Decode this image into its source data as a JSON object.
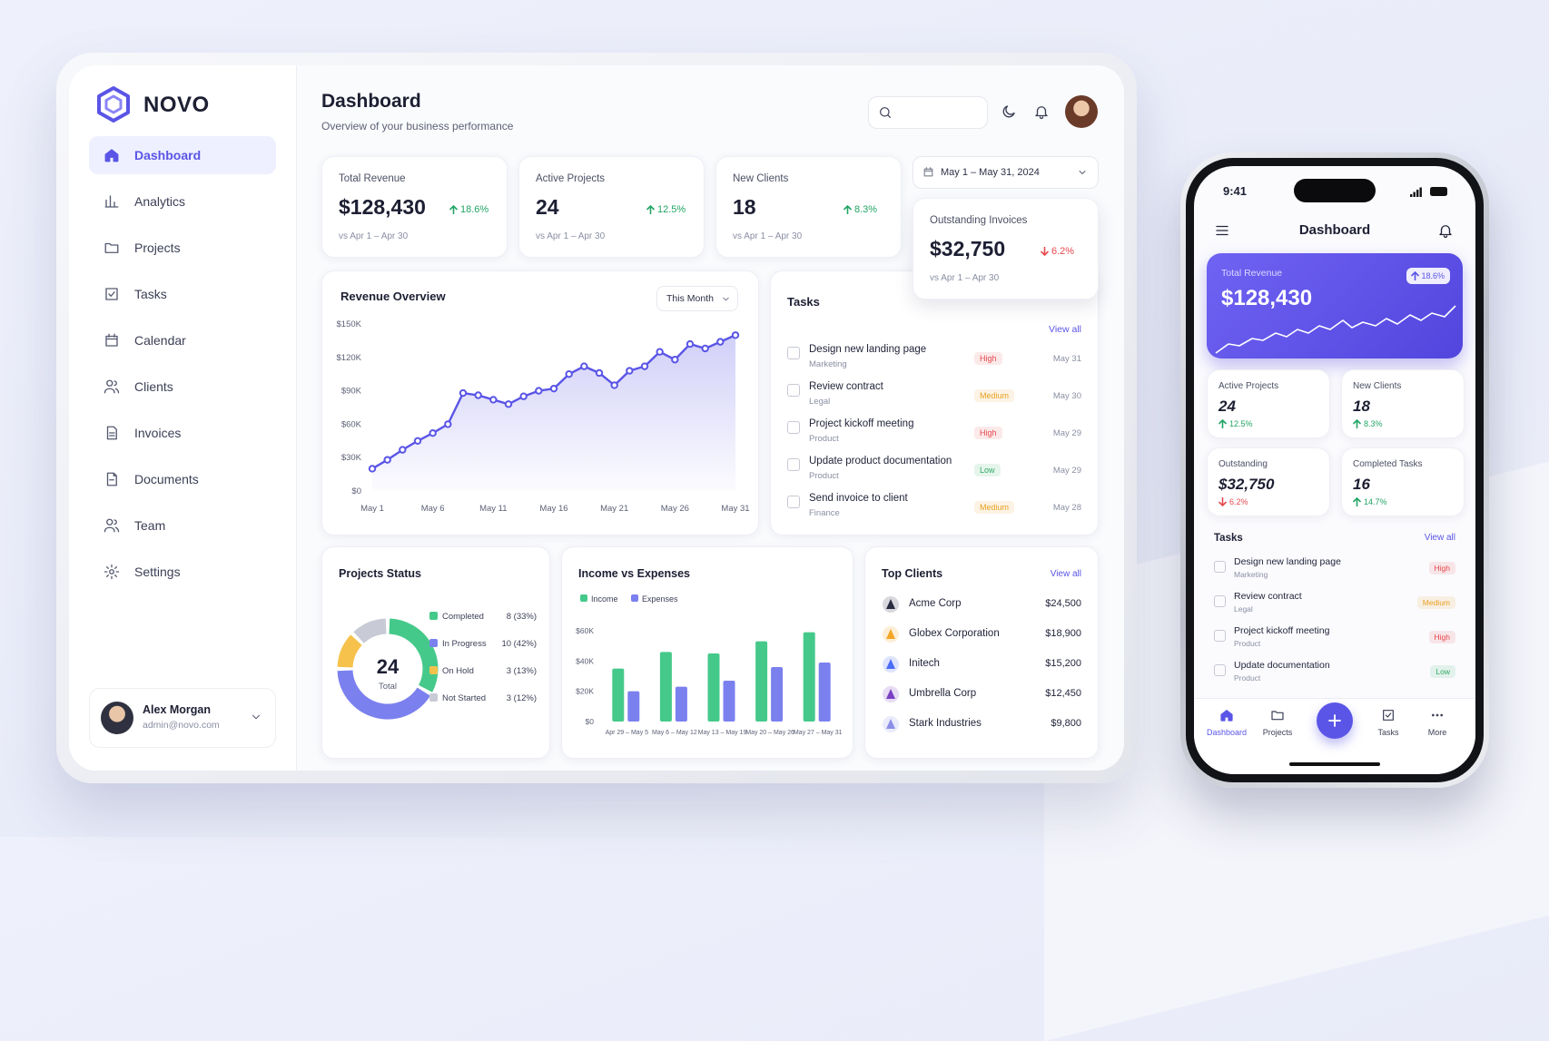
{
  "brand": "NOVO",
  "nav": [
    "Dashboard",
    "Analytics",
    "Projects",
    "Tasks",
    "Calendar",
    "Clients",
    "Invoices",
    "Documents",
    "Team",
    "Settings"
  ],
  "user": {
    "name": "Alex Morgan",
    "email": "admin@novo.com"
  },
  "header": {
    "title": "Dashboard",
    "subtitle": "Overview of your business performance",
    "date_range": "May 1 – May 31, 2024"
  },
  "stats": [
    {
      "label": "Total Revenue",
      "value": "$128,430",
      "change": "18.6%",
      "trend": "up",
      "compare": "vs Apr 1 – Apr 30"
    },
    {
      "label": "Active Projects",
      "value": "24",
      "change": "12.5%",
      "trend": "up",
      "compare": "vs Apr 1 – Apr 30"
    },
    {
      "label": "New Clients",
      "value": "18",
      "change": "8.3%",
      "trend": "up",
      "compare": "vs Apr 1 – Apr 30"
    },
    {
      "label": "Outstanding Invoices",
      "value": "$32,750",
      "change": "6.2%",
      "trend": "down",
      "compare": "vs Apr 1 – Apr 30"
    }
  ],
  "chart_data": [
    {
      "type": "line",
      "title": "Revenue Overview",
      "period": "This Month",
      "color": "#5a55e6",
      "grid": false,
      "categories": [
        "May 1",
        null,
        null,
        null,
        "May 6",
        null,
        null,
        null,
        "May 11",
        null,
        null,
        null,
        "May 16",
        null,
        null,
        null,
        "May 21",
        null,
        null,
        null,
        "May 26",
        null,
        null,
        null,
        "May 31"
      ],
      "values": [
        20000,
        28000,
        37000,
        45000,
        52000,
        60000,
        88000,
        86000,
        82000,
        78000,
        85000,
        90000,
        92000,
        105000,
        112000,
        106000,
        95000,
        108000,
        112000,
        125000,
        118000,
        132000,
        128000,
        134000,
        140000
      ],
      "ylim": [
        0,
        150000
      ],
      "yticks": [
        {
          "value": 0,
          "label": "$0"
        },
        {
          "value": 30000,
          "label": "$30K"
        },
        {
          "value": 60000,
          "label": "$60K"
        },
        {
          "value": 90000,
          "label": "$90K"
        },
        {
          "value": 120000,
          "label": "$120K"
        },
        {
          "value": 150000,
          "label": "$150K"
        }
      ]
    },
    {
      "type": "donut",
      "title": "Projects Status",
      "categories": [
        "Completed",
        "In Progress",
        "On Hold",
        "Not Started"
      ],
      "values": [
        8,
        10,
        3,
        3
      ],
      "value_labels": [
        "8 (33%)",
        "10 (42%)",
        "3 (13%)",
        "3 (12%)"
      ],
      "colors": [
        "#45c98a",
        "#7b80ef",
        "#f6c24c",
        "#c8cbd5"
      ],
      "total": 24,
      "total_label": "Total"
    },
    {
      "type": "bar",
      "title": "Income vs Expenses",
      "categories": [
        "Apr 29 – May 5",
        "May 6 – May 12",
        "May 13 – May 19",
        "May 20 – May 26",
        "May 27 – May 31"
      ],
      "series": [
        {
          "name": "Income",
          "color": "#45c98a",
          "values": [
            35000,
            46000,
            45000,
            53000,
            59000
          ]
        },
        {
          "name": "Expenses",
          "color": "#7b80ef",
          "values": [
            20000,
            23000,
            27000,
            36000,
            39000
          ]
        }
      ],
      "ylim": [
        0,
        60000
      ],
      "yticks": [
        {
          "value": 0,
          "label": "$0"
        },
        {
          "value": 20000,
          "label": "$20K"
        },
        {
          "value": 40000,
          "label": "$40K"
        },
        {
          "value": 60000,
          "label": "$60K"
        }
      ]
    }
  ],
  "tasks": {
    "title": "Tasks",
    "link": "View all",
    "items": [
      {
        "name": "Design new landing page",
        "category": "Marketing",
        "priority": "High",
        "color": "#e5484d",
        "due": "May 31"
      },
      {
        "name": "Review contract",
        "category": "Legal",
        "priority": "Medium",
        "color": "#e8a020",
        "due": "May 30"
      },
      {
        "name": "Project kickoff meeting",
        "category": "Product",
        "priority": "High",
        "color": "#e5484d",
        "due": "May 29"
      },
      {
        "name": "Update product documentation",
        "category": "Product",
        "priority": "Low",
        "color": "#2faa66",
        "due": "May 29"
      },
      {
        "name": "Send invoice to client",
        "category": "Finance",
        "priority": "Medium",
        "color": "#e8a020",
        "due": "May 28"
      }
    ]
  },
  "top_clients": {
    "title": "Top Clients",
    "link": "View all",
    "items": [
      {
        "name": "Acme Corp",
        "amount": "$24,500",
        "color": "#2b2d42"
      },
      {
        "name": "Globex Corporation",
        "amount": "$18,900",
        "color": "#f4a524"
      },
      {
        "name": "Initech",
        "amount": "$15,200",
        "color": "#4a6cf7"
      },
      {
        "name": "Umbrella Corp",
        "amount": "$12,450",
        "color": "#7a3fc2"
      },
      {
        "name": "Stark Industries",
        "amount": "$9,800",
        "color": "#8b8fe8"
      }
    ]
  },
  "mobile": {
    "time": "9:41",
    "title": "Dashboard",
    "revenue": {
      "label": "Total Revenue",
      "value": "$128,430",
      "change": "18.6%"
    },
    "stats": [
      {
        "label": "Active Projects",
        "value": "24",
        "change": "12.5%",
        "trend": "up"
      },
      {
        "label": "New Clients",
        "value": "18",
        "change": "8.3%",
        "trend": "up"
      },
      {
        "label": "Outstanding",
        "value": "$32,750",
        "change": "6.2%",
        "trend": "down"
      },
      {
        "label": "Completed Tasks",
        "value": "16",
        "change": "14.7%",
        "trend": "up"
      }
    ],
    "tasks": {
      "title": "Tasks",
      "link": "View all",
      "items": [
        {
          "name": "Design new landing page",
          "category": "Marketing",
          "priority": "High",
          "color": "#e5484d"
        },
        {
          "name": "Review contract",
          "category": "Legal",
          "priority": "Medium",
          "color": "#e8a020"
        },
        {
          "name": "Project kickoff meeting",
          "category": "Product",
          "priority": "High",
          "color": "#e5484d"
        },
        {
          "name": "Update documentation",
          "category": "Product",
          "priority": "Low",
          "color": "#2faa66"
        }
      ]
    },
    "tabs": [
      "Dashboard",
      "Projects",
      "Tasks",
      "More"
    ]
  }
}
